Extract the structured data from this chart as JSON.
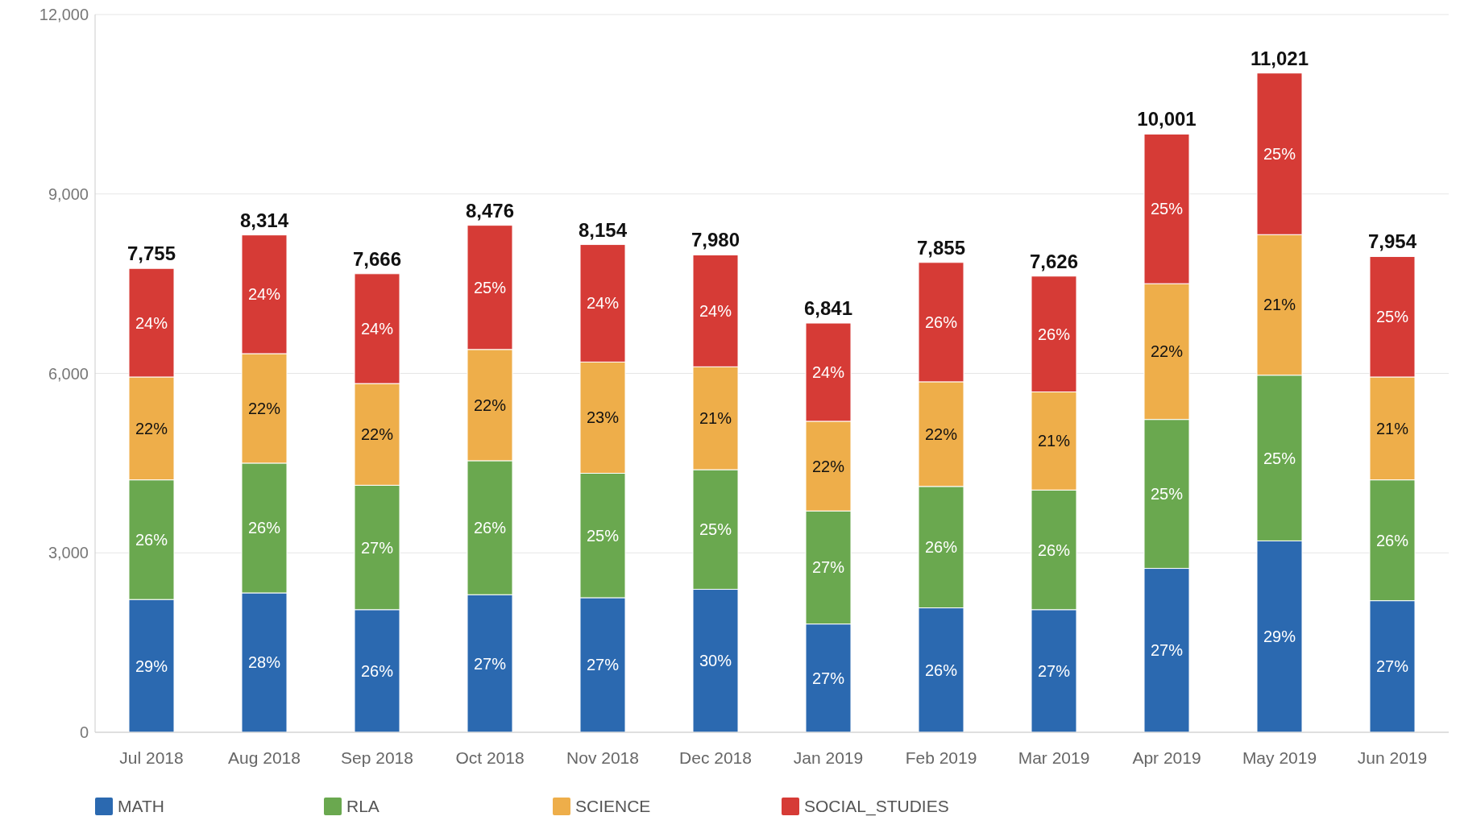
{
  "chart_data": {
    "type": "bar",
    "stacked": true,
    "categories": [
      "Jul 2018",
      "Aug 2018",
      "Sep 2018",
      "Oct 2018",
      "Nov 2018",
      "Dec 2018",
      "Jan 2019",
      "Feb 2019",
      "Mar 2019",
      "Apr 2019",
      "May 2019",
      "Jun 2019"
    ],
    "series": [
      {
        "name": "MATH",
        "color": "#2b69b0",
        "values": [
          2220,
          2330,
          2050,
          2300,
          2250,
          2390,
          1810,
          2080,
          2050,
          2740,
          3200,
          2200
        ]
      },
      {
        "name": "RLA",
        "color": "#6aa84f",
        "values": [
          2000,
          2170,
          2080,
          2240,
          2080,
          2000,
          1890,
          2030,
          2000,
          2490,
          2770,
          2020
        ]
      },
      {
        "name": "SCIENCE",
        "color": "#eeae4a",
        "values": [
          1720,
          1830,
          1700,
          1860,
          1860,
          1720,
          1500,
          1750,
          1640,
          2270,
          2350,
          1720
        ]
      },
      {
        "name": "SOCIAL_STUDIES",
        "color": "#d63b36",
        "values": [
          1815,
          1984,
          1836,
          2076,
          1964,
          1870,
          1641,
          1995,
          1936,
          2501,
          2701,
          2014
        ]
      }
    ],
    "totals": [
      "7,755",
      "8,314",
      "7,666",
      "8,476",
      "8,154",
      "7,980",
      "6,841",
      "7,855",
      "7,626",
      "10,001",
      "11,021",
      "7,954"
    ],
    "annotations": [
      "29%",
      "26%",
      "22%",
      "24%",
      "28%",
      "26%",
      "22%",
      "24%",
      "26%",
      "27%",
      "22%",
      "24%",
      "27%",
      "26%",
      "22%",
      "25%",
      "27%",
      "25%",
      "23%",
      "24%",
      "30%",
      "25%",
      "21%",
      "24%",
      "27%",
      "27%",
      "22%",
      "24%",
      "26%",
      "26%",
      "22%",
      "26%",
      "27%",
      "26%",
      "21%",
      "26%",
      "27%",
      "25%",
      "22%",
      "25%",
      "29%",
      "25%",
      "21%",
      "25%",
      "27%",
      "26%",
      "21%",
      "25%"
    ],
    "ylim": [
      0,
      12000
    ],
    "yticks": [
      0,
      {
        "value": 3000,
        "label": "3,000"
      },
      {
        "value": 6000,
        "label": "6,000"
      },
      {
        "value": 9000,
        "label": "9,000"
      },
      {
        "value": 12000,
        "label": "12,000"
      }
    ],
    "grid": "y",
    "legend": "bottom"
  }
}
